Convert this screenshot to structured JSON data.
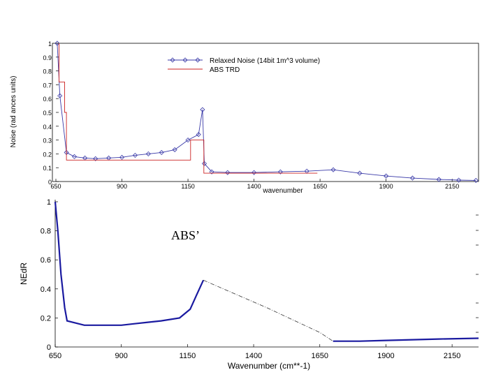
{
  "chart_data": [
    {
      "type": "line",
      "xlabel": "wavenumber",
      "ylabel": "Noise (rad ances units)",
      "xlim": [
        650,
        2250
      ],
      "ylim": [
        0,
        1
      ],
      "x_ticks": [
        650,
        900,
        1150,
        1400,
        1650,
        1900,
        2150
      ],
      "y_ticks": [
        0,
        0.1,
        0.2,
        0.3,
        0.4,
        0.5,
        0.6,
        0.7,
        0.8,
        0.9,
        1
      ],
      "y_tick_labels": [
        "0",
        "0.1",
        "0.2",
        "0.3",
        "0.4",
        "0.5",
        "0.6",
        "0.7",
        "0.8",
        "0.9",
        "1"
      ],
      "grid": false,
      "legend_position": "top-right",
      "series": [
        {
          "name": "Relaxed Noise (14bit 1m^3 volume)",
          "color": "#3a3aa8",
          "marker": "diamond",
          "points": [
            [
              655,
              1.0
            ],
            [
              665,
              0.62
            ],
            [
              690,
              0.21
            ],
            [
              720,
              0.18
            ],
            [
              760,
              0.17
            ],
            [
              800,
              0.165
            ],
            [
              850,
              0.17
            ],
            [
              900,
              0.175
            ],
            [
              950,
              0.19
            ],
            [
              1000,
              0.2
            ],
            [
              1050,
              0.21
            ],
            [
              1100,
              0.23
            ],
            [
              1150,
              0.3
            ],
            [
              1190,
              0.34
            ],
            [
              1205,
              0.52
            ],
            [
              1212,
              0.13
            ],
            [
              1240,
              0.07
            ],
            [
              1300,
              0.065
            ],
            [
              1400,
              0.065
            ],
            [
              1500,
              0.07
            ],
            [
              1600,
              0.075
            ],
            [
              1700,
              0.085
            ],
            [
              1800,
              0.06
            ],
            [
              1900,
              0.04
            ],
            [
              2000,
              0.025
            ],
            [
              2100,
              0.015
            ],
            [
              2175,
              0.01
            ],
            [
              2240,
              0.008
            ]
          ]
        },
        {
          "name": "ABS TRD",
          "color": "#cc2222",
          "marker": "none",
          "points": [
            [
              662,
              1.0
            ],
            [
              662,
              0.72
            ],
            [
              683,
              0.72
            ],
            [
              683,
              0.5
            ],
            [
              690,
              0.5
            ],
            [
              690,
              0.155
            ],
            [
              1160,
              0.155
            ],
            [
              1160,
              0.3
            ],
            [
              1210,
              0.3
            ],
            [
              1210,
              0.06
            ],
            [
              1640,
              0.06
            ]
          ]
        }
      ]
    },
    {
      "type": "line",
      "xlabel": "Wavenumber (cm**-1)",
      "ylabel": "NEdR",
      "xlim": [
        650,
        2250
      ],
      "ylim": [
        0,
        1
      ],
      "x_ticks": [
        650,
        900,
        1150,
        1400,
        1650,
        1900,
        2150
      ],
      "y_ticks": [
        0,
        0.2,
        0.4,
        0.6,
        0.8,
        1
      ],
      "y_tick_labels": [
        "0",
        "0.2",
        "0.4",
        "0.6",
        "0.8",
        "1"
      ],
      "grid": false,
      "annotation": "ABS’",
      "series": [
        {
          "color": "#1a1aa0",
          "style": "solid",
          "points": [
            [
              650,
              1.0
            ],
            [
              660,
              0.8
            ],
            [
              672,
              0.5
            ],
            [
              686,
              0.27
            ],
            [
              695,
              0.18
            ],
            [
              760,
              0.15
            ],
            [
              830,
              0.15
            ],
            [
              900,
              0.15
            ],
            [
              950,
              0.16
            ],
            [
              1000,
              0.17
            ],
            [
              1050,
              0.18
            ],
            [
              1120,
              0.2
            ],
            [
              1160,
              0.26
            ],
            [
              1185,
              0.36
            ],
            [
              1210,
              0.46
            ]
          ]
        },
        {
          "color": "#333333",
          "style": "dashdot",
          "points": [
            [
              1210,
              0.46
            ],
            [
              1450,
              0.27
            ],
            [
              1650,
              0.1
            ],
            [
              1700,
              0.04
            ]
          ]
        },
        {
          "color": "#1a1aa0",
          "style": "solid",
          "points": [
            [
              1700,
              0.04
            ],
            [
              1800,
              0.04
            ],
            [
              1900,
              0.045
            ],
            [
              2000,
              0.05
            ],
            [
              2100,
              0.055
            ],
            [
              2250,
              0.06
            ]
          ]
        }
      ]
    }
  ]
}
